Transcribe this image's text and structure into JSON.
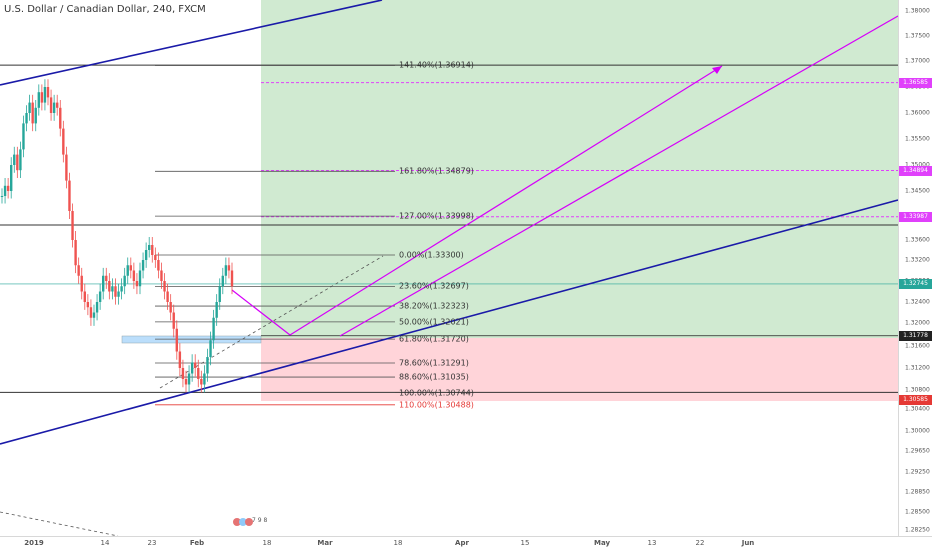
{
  "title": "U.S. Dollar / Canadian Dollar, 240, FXCM",
  "chart_data": {
    "type": "line",
    "title": "U.S. Dollar / Canadian Dollar, 240, FXCM",
    "symbol": "U.S. Dollar / Canadian Dollar",
    "interval": "240",
    "source": "FXCM",
    "y_ticks": [
      1.38,
      1.375,
      1.37,
      1.365,
      1.36,
      1.355,
      1.35,
      1.345,
      1.34,
      1.336,
      1.332,
      1.328,
      1.324,
      1.32,
      1.316,
      1.312,
      1.308,
      1.304,
      1.3,
      1.2965,
      1.2925,
      1.2885,
      1.285,
      1.2825
    ],
    "y_tick_labels": [
      "1.38000",
      "1.37500",
      "1.37000",
      "1.36500",
      "1.36000",
      "1.35500",
      "1.35000",
      "1.34500",
      "1.34000",
      "1.33600",
      "1.33200",
      "1.32800",
      "1.32400",
      "1.32000",
      "1.31600",
      "1.31200",
      "1.30800",
      "1.30400",
      "1.30000",
      "1.29650",
      "1.29250",
      "1.28850",
      "1.28500",
      "1.28250"
    ],
    "x_ticks": [
      "2019",
      "14",
      "23",
      "Feb",
      "18",
      "Mar",
      "18",
      "Apr",
      "15",
      "May",
      "13",
      "22",
      "Jun"
    ],
    "ylim": [
      1.2815,
      1.3815
    ],
    "price_tags": [
      {
        "label": "1.36585",
        "value": 1.36585,
        "color": "#e040fb"
      },
      {
        "label": "1.34894",
        "value": 1.34894,
        "color": "#e040fb"
      },
      {
        "label": "1.33987",
        "value": 1.33987,
        "color": "#e040fb"
      },
      {
        "label": "1.32745",
        "value": 1.32745,
        "color": "#26a69a"
      },
      {
        "label": "1.31778",
        "value": 1.31778,
        "color": "#222222"
      },
      {
        "label": "1.30585",
        "value": 1.30585,
        "color": "#e53935"
      }
    ],
    "fib_levels": [
      {
        "label": "141.40%(1.36914)",
        "value": 1.36914
      },
      {
        "label": "161.80%(1.34879)",
        "value": 1.34879
      },
      {
        "label": "127.00%(1.33998)",
        "value": 1.33998
      },
      {
        "label": "0.00%(1.33300)",
        "value": 1.333
      },
      {
        "label": "23.60%(1.32697)",
        "value": 1.32697
      },
      {
        "label": "38.20%(1.32323)",
        "value": 1.32323
      },
      {
        "label": "50.00%(1.32021)",
        "value": 1.32021
      },
      {
        "label": "61.80%(1.31720)",
        "value": 1.3172
      },
      {
        "label": "78.60%(1.31291)",
        "value": 1.31291
      },
      {
        "label": "88.60%(1.31035)",
        "value": 1.31035
      },
      {
        "label": "100.00%(1.30744)",
        "value": 1.30744
      },
      {
        "label": "110.00%(1.30488)",
        "value": 1.30488,
        "color": "#e53935"
      }
    ],
    "candles_close": [
      1.344,
      1.346,
      1.345,
      1.35,
      1.352,
      1.349,
      1.353,
      1.358,
      1.36,
      1.362,
      1.358,
      1.361,
      1.364,
      1.362,
      1.365,
      1.363,
      1.36,
      1.362,
      1.361,
      1.357,
      1.352,
      1.347,
      1.341,
      1.336,
      1.331,
      1.329,
      1.326,
      1.324,
      1.323,
      1.321,
      1.322,
      1.324,
      1.326,
      1.329,
      1.328,
      1.326,
      1.327,
      1.325,
      1.326,
      1.327,
      1.329,
      1.331,
      1.33,
      1.328,
      1.327,
      1.33,
      1.332,
      1.334,
      1.335,
      1.333,
      1.332,
      1.33,
      1.328,
      1.326,
      1.324,
      1.322,
      1.319,
      1.315,
      1.312,
      1.31,
      1.309,
      1.311,
      1.313,
      1.312,
      1.31,
      1.309,
      1.311,
      1.314,
      1.317,
      1.321,
      1.324,
      1.327,
      1.329,
      1.331,
      1.33,
      1.327
    ],
    "annotation": "7 9 8"
  }
}
